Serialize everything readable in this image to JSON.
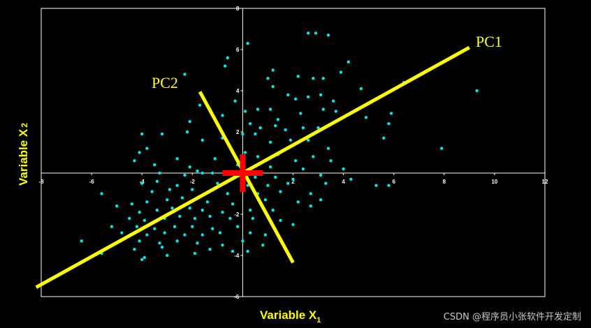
{
  "chart_data": {
    "type": "scatter",
    "title": "",
    "xlabel": {
      "main": "Variable X",
      "sub": "1"
    },
    "ylabel": {
      "main": "Variable X",
      "sub": "2"
    },
    "xlim": [
      -8,
      12
    ],
    "ylim": [
      -6,
      8
    ],
    "xticks": [
      -8,
      -6,
      -4,
      -2,
      0,
      2,
      4,
      6,
      8,
      10,
      12
    ],
    "yticks": [
      -6,
      -4,
      -2,
      0,
      2,
      4,
      6,
      8
    ],
    "grid": false,
    "colors": {
      "points": "#00e5e5",
      "pc_lines": "#ffff00",
      "centroid": "#ff0000",
      "axes": "#ffffff",
      "background": "#000000"
    },
    "components": [
      {
        "name": "PC1",
        "x": [
          -8.2,
          9.0
        ],
        "y": [
          -5.55,
          6.1
        ]
      },
      {
        "name": "PC2",
        "x": [
          -1.7,
          2.0
        ],
        "y": [
          3.95,
          -4.35
        ]
      }
    ],
    "centroid": {
      "x": 0,
      "y": 0
    },
    "points": [
      [
        2.6,
        6.8
      ],
      [
        2.9,
        6.8
      ],
      [
        3.4,
        6.7
      ],
      [
        0.2,
        6.3
      ],
      [
        -0.6,
        5.6
      ],
      [
        -0.7,
        5.2
      ],
      [
        3.9,
        4.9
      ],
      [
        4.2,
        5.4
      ],
      [
        -2.3,
        4.8
      ],
      [
        1.2,
        5.0
      ],
      [
        1.0,
        4.6
      ],
      [
        2.2,
        4.7
      ],
      [
        2.8,
        4.6
      ],
      [
        3.2,
        4.6
      ],
      [
        1.2,
        4.2
      ],
      [
        1.8,
        3.8
      ],
      [
        2.1,
        3.6
      ],
      [
        2.6,
        3.7
      ],
      [
        3.1,
        3.8
      ],
      [
        3.6,
        3.5
      ],
      [
        4.7,
        4.1
      ],
      [
        6.4,
        4.4
      ],
      [
        9.3,
        4.0
      ],
      [
        -1.7,
        3.3
      ],
      [
        -1.3,
        3.1
      ],
      [
        -0.3,
        3.5
      ],
      [
        0.1,
        3.0
      ],
      [
        0.6,
        3.1
      ],
      [
        1.1,
        3.1
      ],
      [
        1.4,
        2.6
      ],
      [
        2.3,
        2.9
      ],
      [
        3.2,
        3.1
      ],
      [
        3.7,
        3.0
      ],
      [
        4.9,
        2.7
      ],
      [
        5.9,
        2.9
      ],
      [
        -2.1,
        2.5
      ],
      [
        -0.8,
        2.8
      ],
      [
        0.3,
        2.4
      ],
      [
        0.7,
        2.2
      ],
      [
        1.3,
        2.3
      ],
      [
        1.7,
        2.1
      ],
      [
        2.4,
        2.2
      ],
      [
        3.0,
        2.2
      ],
      [
        3.7,
        2.5
      ],
      [
        5.8,
        2.4
      ],
      [
        -4.0,
        1.9
      ],
      [
        -3.2,
        1.9
      ],
      [
        -2.2,
        2.0
      ],
      [
        -1.6,
        1.6
      ],
      [
        -0.8,
        1.7
      ],
      [
        0.0,
        1.9
      ],
      [
        0.5,
        1.9
      ],
      [
        1.1,
        1.5
      ],
      [
        1.9,
        1.6
      ],
      [
        2.6,
        1.6
      ],
      [
        3.4,
        1.2
      ],
      [
        5.6,
        1.7
      ],
      [
        7.9,
        1.2
      ],
      [
        -4.1,
        1.0
      ],
      [
        -3.8,
        1.2
      ],
      [
        -2.6,
        0.7
      ],
      [
        -1.1,
        0.7
      ],
      [
        -0.4,
        1.0
      ],
      [
        0.1,
        1.0
      ],
      [
        0.6,
        0.8
      ],
      [
        1.4,
        0.9
      ],
      [
        2.1,
        0.6
      ],
      [
        2.8,
        0.8
      ],
      [
        3.5,
        0.6
      ],
      [
        -4.3,
        0.6
      ],
      [
        -3.5,
        0.4
      ],
      [
        -2.1,
        0.3
      ],
      [
        -1.6,
        0.0
      ],
      [
        -0.2,
        0.4
      ],
      [
        1.1,
        0.3
      ],
      [
        2.4,
        0.2
      ],
      [
        4.0,
        0.2
      ],
      [
        -3.3,
        0.0
      ],
      [
        -2.3,
        -0.1
      ],
      [
        -1.8,
        0.1
      ],
      [
        -1.2,
        0.0
      ],
      [
        0.5,
        -0.2
      ],
      [
        1.3,
        -0.2
      ],
      [
        2.0,
        -0.3
      ],
      [
        3.1,
        -0.1
      ],
      [
        4.3,
        -0.3
      ],
      [
        -4.0,
        -0.5
      ],
      [
        -3.4,
        -0.4
      ],
      [
        -2.6,
        -0.6
      ],
      [
        -1.0,
        -0.5
      ],
      [
        0.2,
        -0.6
      ],
      [
        1.0,
        -0.6
      ],
      [
        1.8,
        -0.5
      ],
      [
        3.3,
        -0.5
      ],
      [
        5.3,
        -0.6
      ],
      [
        5.8,
        -0.6
      ],
      [
        -5.6,
        -1.0
      ],
      [
        -3.6,
        -0.9
      ],
      [
        -2.9,
        -0.8
      ],
      [
        -2.0,
        -0.8
      ],
      [
        -0.6,
        -1.0
      ],
      [
        0.6,
        -1.0
      ],
      [
        1.5,
        -0.9
      ],
      [
        2.7,
        -1.0
      ],
      [
        -4.4,
        -1.5
      ],
      [
        -3.8,
        -1.4
      ],
      [
        -3.0,
        -1.3
      ],
      [
        -2.4,
        -1.2
      ],
      [
        -1.4,
        -1.4
      ],
      [
        -0.4,
        -1.5
      ],
      [
        0.9,
        -1.3
      ],
      [
        2.2,
        -1.4
      ],
      [
        3.1,
        -1.3
      ],
      [
        -5.0,
        -1.6
      ],
      [
        -4.1,
        -1.9
      ],
      [
        -3.4,
        -1.8
      ],
      [
        -2.8,
        -1.7
      ],
      [
        -2.1,
        -1.7
      ],
      [
        -1.6,
        -1.8
      ],
      [
        -0.8,
        -1.9
      ],
      [
        0.3,
        -1.8
      ],
      [
        1.2,
        -1.8
      ],
      [
        2.7,
        -1.6
      ],
      [
        -4.5,
        -2.2
      ],
      [
        -3.9,
        -2.3
      ],
      [
        -3.1,
        -2.2
      ],
      [
        -2.5,
        -2.1
      ],
      [
        -1.9,
        -2.2
      ],
      [
        -1.3,
        -2.1
      ],
      [
        -0.5,
        -2.2
      ],
      [
        0.4,
        -2.2
      ],
      [
        1.5,
        -2.3
      ],
      [
        -5.2,
        -2.6
      ],
      [
        -4.2,
        -2.6
      ],
      [
        -3.5,
        -2.7
      ],
      [
        -2.7,
        -2.6
      ],
      [
        -2.0,
        -2.6
      ],
      [
        -1.2,
        -2.7
      ],
      [
        -0.2,
        -2.6
      ],
      [
        2.0,
        -2.5
      ],
      [
        -4.8,
        -2.9
      ],
      [
        -3.8,
        -3.0
      ],
      [
        -3.1,
        -2.9
      ],
      [
        -2.3,
        -3.0
      ],
      [
        -1.6,
        -3.0
      ],
      [
        -0.9,
        -2.9
      ],
      [
        0.3,
        -2.9
      ],
      [
        0.9,
        -3.0
      ],
      [
        -6.4,
        -3.3
      ],
      [
        -4.1,
        -3.3
      ],
      [
        -3.3,
        -3.4
      ],
      [
        -2.6,
        -3.3
      ],
      [
        -1.8,
        -3.4
      ],
      [
        -0.8,
        -3.5
      ],
      [
        0.0,
        -3.3
      ],
      [
        0.8,
        -3.5
      ],
      [
        -5.6,
        -3.9
      ],
      [
        -4.3,
        -3.7
      ],
      [
        -3.2,
        -3.6
      ],
      [
        -1.3,
        -3.7
      ],
      [
        -0.4,
        -3.8
      ],
      [
        0.2,
        -3.8
      ],
      [
        -3.9,
        -4.1
      ],
      [
        -3.0,
        -4.0
      ],
      [
        -1.9,
        -3.9
      ],
      [
        -4.0,
        -4.2
      ]
    ]
  },
  "watermark": "CSDN @程序员小张软件开发定制"
}
